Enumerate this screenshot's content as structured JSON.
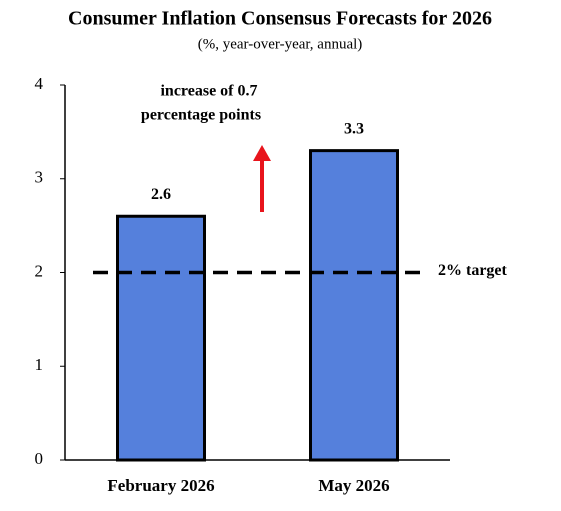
{
  "chart_data": {
    "type": "bar",
    "title": "Consumer Inflation Consensus Forecasts for 2026",
    "subtitle": "(%, year-over-year, annual)",
    "categories": [
      "February 2026",
      "May 2026"
    ],
    "values": [
      2.6,
      3.3
    ],
    "color": "#5580dc",
    "edge_color": "#000000",
    "ylim": [
      0,
      4
    ],
    "yticks": [
      0,
      1,
      2,
      3,
      4
    ],
    "reference_line": {
      "value": 2,
      "label": "2% target"
    },
    "annotation": [
      "increase of 0.7",
      "percentage points"
    ]
  }
}
